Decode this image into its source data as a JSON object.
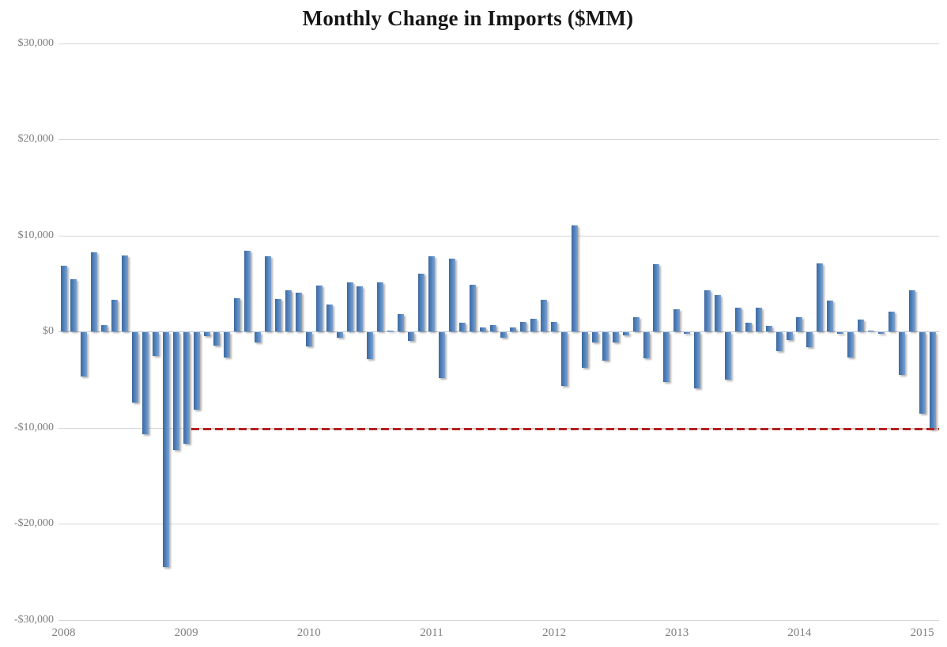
{
  "chart_data": {
    "type": "bar",
    "title": "Monthly Change in Imports ($MM)",
    "xlabel": "",
    "ylabel": "",
    "ylim": [
      -30000,
      30000
    ],
    "grid": "horizontal",
    "legend": "none",
    "bar_color": "#4f81bd",
    "bar_gradient": [
      "#40699c",
      "#4f81bd",
      "#7ba0cd"
    ],
    "gridline_color": "#d6d6d6",
    "zero_axis_color": "#b7c4d6",
    "label_color": "#7f7f7f",
    "title_color": "#161616",
    "y_ticks": [
      {
        "label": "$30,000",
        "value": 30000
      },
      {
        "label": "$20,000",
        "value": 20000
      },
      {
        "label": "$10,000",
        "value": 10000
      },
      {
        "label": "$0",
        "value": 0
      },
      {
        "label": "-$10,000",
        "value": -10000
      },
      {
        "label": "-$20,000",
        "value": -20000
      },
      {
        "label": "-$30,000",
        "value": -30000
      }
    ],
    "x_ticks": [
      {
        "label": "2008",
        "month_index": 0
      },
      {
        "label": "2009",
        "month_index": 12
      },
      {
        "label": "2010",
        "month_index": 24
      },
      {
        "label": "2011",
        "month_index": 36
      },
      {
        "label": "2012",
        "month_index": 48
      },
      {
        "label": "2013",
        "month_index": 60
      },
      {
        "label": "2014",
        "month_index": 72
      },
      {
        "label": "2015",
        "month_index": 84
      }
    ],
    "x": [
      "2008-01",
      "2008-02",
      "2008-03",
      "2008-04",
      "2008-05",
      "2008-06",
      "2008-07",
      "2008-08",
      "2008-09",
      "2008-10",
      "2008-11",
      "2008-12",
      "2009-01",
      "2009-02",
      "2009-03",
      "2009-04",
      "2009-05",
      "2009-06",
      "2009-07",
      "2009-08",
      "2009-09",
      "2009-10",
      "2009-11",
      "2009-12",
      "2010-01",
      "2010-02",
      "2010-03",
      "2010-04",
      "2010-05",
      "2010-06",
      "2010-07",
      "2010-08",
      "2010-09",
      "2010-10",
      "2010-11",
      "2010-12",
      "2011-01",
      "2011-02",
      "2011-03",
      "2011-04",
      "2011-05",
      "2011-06",
      "2011-07",
      "2011-08",
      "2011-09",
      "2011-10",
      "2011-11",
      "2011-12",
      "2012-01",
      "2012-02",
      "2012-03",
      "2012-04",
      "2012-05",
      "2012-06",
      "2012-07",
      "2012-08",
      "2012-09",
      "2012-10",
      "2012-11",
      "2012-12",
      "2013-01",
      "2013-02",
      "2013-03",
      "2013-04",
      "2013-05",
      "2013-06",
      "2013-07",
      "2013-08",
      "2013-09",
      "2013-10",
      "2013-11",
      "2013-12",
      "2014-01",
      "2014-02",
      "2014-03",
      "2014-04",
      "2014-05",
      "2014-06",
      "2014-07",
      "2014-08",
      "2014-09",
      "2014-10",
      "2014-11",
      "2014-12",
      "2015-01",
      "2015-02"
    ],
    "values": [
      6800,
      5400,
      -4600,
      8200,
      700,
      3300,
      7900,
      -7300,
      -10600,
      -2500,
      -24400,
      -12300,
      -11600,
      -8100,
      -400,
      -1400,
      -2600,
      3500,
      8400,
      -1100,
      7800,
      3400,
      4300,
      4000,
      -1500,
      4800,
      2800,
      -600,
      5100,
      4700,
      -2800,
      5100,
      100,
      1800,
      -900,
      6000,
      7800,
      -4800,
      7600,
      900,
      4900,
      400,
      700,
      -600,
      400,
      1000,
      1300,
      3300,
      1000,
      -5600,
      11000,
      -3700,
      -1100,
      -3000,
      -1100,
      -300,
      1500,
      -2700,
      7000,
      -5200,
      2300,
      -200,
      -5800,
      4300,
      3800,
      -4900,
      2500,
      900,
      2500,
      600,
      -2000,
      -800,
      1500,
      -1600,
      7100,
      3200,
      -200,
      -2600,
      1200,
      100,
      -200,
      2100,
      -4400,
      4300,
      -8500,
      -10100
    ],
    "reference_line": {
      "value": -10100,
      "color": "#b22222",
      "style": "dashed",
      "start_month_index": 13
    }
  }
}
